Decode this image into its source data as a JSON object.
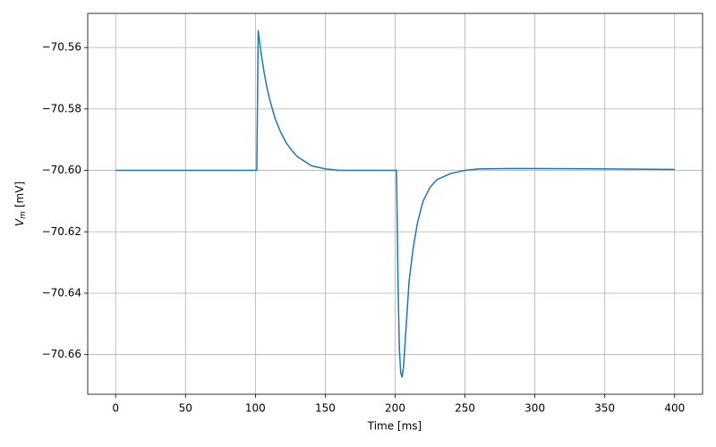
{
  "chart_data": {
    "type": "line",
    "xlabel": "Time [ms]",
    "ylabel_symbol": "V",
    "ylabel_subscript": "m",
    "ylabel_unit": "[mV]",
    "xlim": [
      -20,
      420
    ],
    "ylim": [
      -70.6729,
      -70.5489
    ],
    "xticks": [
      0,
      50,
      100,
      150,
      200,
      250,
      300,
      350,
      400
    ],
    "yticks": [
      {
        "value": -70.56,
        "label": "−70.56"
      },
      {
        "value": -70.58,
        "label": "−70.58"
      },
      {
        "value": -70.6,
        "label": "−70.60"
      },
      {
        "value": -70.62,
        "label": "−70.62"
      },
      {
        "value": -70.64,
        "label": "−70.64"
      },
      {
        "value": -70.66,
        "label": "−70.66"
      }
    ],
    "grid": true,
    "x": [
      0,
      50,
      100,
      101,
      102,
      104,
      106,
      108,
      110,
      114,
      118,
      122,
      126,
      130,
      135,
      140,
      150,
      160,
      200,
      201,
      202,
      203,
      204,
      205,
      206,
      208,
      210,
      213,
      216,
      220,
      225,
      230,
      240,
      250,
      260,
      280,
      300,
      350,
      400
    ],
    "series": [
      {
        "color": "#1f77b4",
        "values": [
          -70.6,
          -70.6,
          -70.6,
          -70.6,
          -70.5545,
          -70.5615,
          -70.5675,
          -70.5725,
          -70.5765,
          -70.583,
          -70.5875,
          -70.591,
          -70.5935,
          -70.5955,
          -70.597,
          -70.5985,
          -70.5995,
          -70.6,
          -70.6,
          -70.6,
          -70.635,
          -70.658,
          -70.666,
          -70.6673,
          -70.664,
          -70.65,
          -70.636,
          -70.625,
          -70.617,
          -70.61,
          -70.6055,
          -70.603,
          -70.601,
          -70.6,
          -70.5995,
          -70.5994,
          -70.5994,
          -70.5995,
          -70.5997
        ]
      }
    ]
  }
}
